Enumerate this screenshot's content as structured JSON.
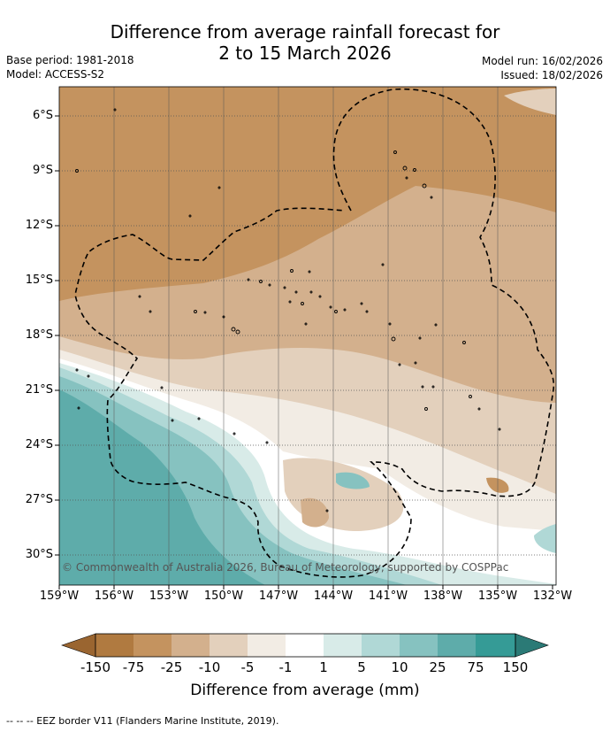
{
  "title_line1": "Difference from average rainfall forecast for",
  "title_line2": "2 to 15 March 2026",
  "meta_left": [
    "Base period: 1981-2018",
    "Model: ACCESS-S2"
  ],
  "meta_right": [
    "Model run: 16/02/2026",
    "Issued: 18/02/2026"
  ],
  "lat_labels": [
    "6°S",
    "9°S",
    "12°S",
    "15°S",
    "18°S",
    "21°S",
    "24°S",
    "27°S",
    "30°S"
  ],
  "lon_labels": [
    "159°W",
    "156°W",
    "153°W",
    "150°W",
    "147°W",
    "144°W",
    "141°W",
    "138°W",
    "135°W",
    "132°W"
  ],
  "copyright": "© Commonwealth of Australia 2026, Bureau of Meteorology, supported by COSPPac",
  "colorbar": {
    "labels": [
      "-150",
      "-75",
      "-25",
      "-10",
      "-5",
      "-1",
      "1",
      "5",
      "10",
      "25",
      "75",
      "150"
    ],
    "colors": [
      "#b07a40",
      "#c4935f",
      "#d3b08d",
      "#e3d0bc",
      "#f2ece4",
      "#ffffff",
      "#d8ebe8",
      "#b0d8d6",
      "#86c2c0",
      "#5eacaa",
      "#359b96",
      "#2b7a76"
    ],
    "title": "Difference from average (mm)"
  },
  "footnote": "--  --  -- EEZ border V11 (Flanders Marine Institute, 2019)."
}
